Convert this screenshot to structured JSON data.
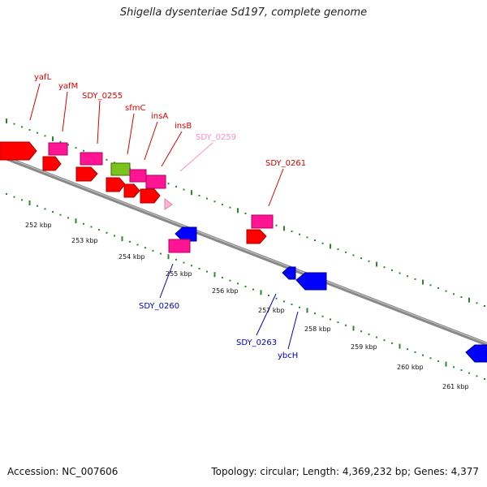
{
  "title": "Shigella dysenteriae Sd197, complete genome",
  "footer": {
    "accession": "Accession: NC_007606",
    "topology": "Topology: circular; Length: 4,369,232 bp; Genes: 4,377"
  },
  "colors": {
    "backbone": "#8a8a8a",
    "tick_green": "#2a8a2a",
    "gene_red": "#ff0000",
    "gene_pink": "#ff1493",
    "gene_green": "#7ac21e",
    "gene_light": "#ffb6d5",
    "gene_blue": "#0000ff",
    "label_red": "#dd0000",
    "label_light": "#ff8fbf",
    "label_blue": "#0000cc"
  },
  "kbp_labels": [
    "252 kbp",
    "253 kbp",
    "254 kbp",
    "255 kbp",
    "256 kbp",
    "257 kbp",
    "258 kbp",
    "259 kbp",
    "260 kbp",
    "261 kbp"
  ],
  "gene_labels_top": [
    "yafL",
    "yafM",
    "SDY_0255",
    "sfmC",
    "insA",
    "insB",
    "SDY_0259",
    "SDY_0261"
  ],
  "gene_labels_bottom": [
    "SDY_0260",
    "SDY_0263",
    "ybcH"
  ]
}
